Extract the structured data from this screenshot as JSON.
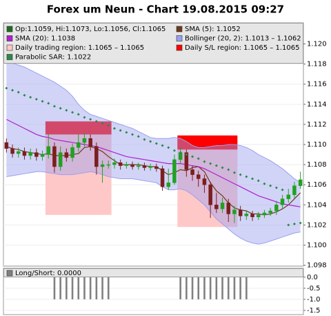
{
  "chart_data": [
    {
      "type": "candlestick",
      "title": "Forex um Neun - Chart 19.08.2015 09:27",
      "ohlc_name": "Op:1.1059, Hi:1.1073, Lo:1.1056, Cl:1.1065",
      "ohlc_color": "#1e6b1e",
      "up_color": "#22a022",
      "down_color": "#7a1f1f",
      "open": [
        1.1102,
        1.1096,
        1.1091,
        1.1093,
        1.1089,
        1.1092,
        1.1088,
        1.109,
        1.1098,
        1.1078,
        1.1092,
        1.1087,
        1.1097,
        1.1102,
        1.1106,
        1.1098,
        1.1078,
        1.108,
        1.108,
        1.1082,
        1.1079,
        1.108,
        1.1078,
        1.1079,
        1.1077,
        1.1078,
        1.1076,
        1.1058,
        1.1062,
        1.1085,
        1.1092,
        1.1075,
        1.107,
        1.1066,
        1.106,
        1.104,
        1.1036,
        1.1042,
        1.1031,
        1.1035,
        1.1029,
        1.1031,
        1.1028,
        1.103,
        1.1032,
        1.1034,
        1.104,
        1.1046,
        1.105,
        1.1059
      ],
      "high": [
        1.1106,
        1.11,
        1.1097,
        1.1097,
        1.1096,
        1.1096,
        1.1094,
        1.111,
        1.1102,
        1.1098,
        1.1096,
        1.1101,
        1.111,
        1.1112,
        1.111,
        1.1102,
        1.1084,
        1.1084,
        1.1086,
        1.1085,
        1.1083,
        1.1083,
        1.1082,
        1.1082,
        1.1081,
        1.1081,
        1.1079,
        1.1076,
        1.109,
        1.1097,
        1.1095,
        1.1079,
        1.1074,
        1.107,
        1.1063,
        1.1052,
        1.1047,
        1.1046,
        1.1039,
        1.1039,
        1.1034,
        1.1034,
        1.1033,
        1.1035,
        1.1037,
        1.1044,
        1.105,
        1.1056,
        1.1063,
        1.1073
      ],
      "low": [
        1.1092,
        1.1087,
        1.1087,
        1.1085,
        1.1085,
        1.1084,
        1.1084,
        1.1086,
        1.1072,
        1.1074,
        1.1083,
        1.1083,
        1.1093,
        1.1098,
        1.1094,
        1.107,
        1.1062,
        1.1076,
        1.1076,
        1.1075,
        1.1076,
        1.1075,
        1.1075,
        1.1074,
        1.1074,
        1.1073,
        1.1054,
        1.1055,
        1.106,
        1.1081,
        1.1068,
        1.1064,
        1.1058,
        1.1052,
        1.1027,
        1.1032,
        1.1032,
        1.1023,
        1.1022,
        1.1024,
        1.1025,
        1.1024,
        1.1025,
        1.1027,
        1.1029,
        1.103,
        1.1036,
        1.1042,
        1.1046,
        1.1056
      ],
      "close": [
        1.1096,
        1.1091,
        1.1093,
        1.1089,
        1.1092,
        1.1088,
        1.109,
        1.1098,
        1.1078,
        1.1092,
        1.1087,
        1.1097,
        1.1102,
        1.1106,
        1.1098,
        1.1078,
        1.108,
        1.108,
        1.1082,
        1.1079,
        1.108,
        1.1078,
        1.1079,
        1.1077,
        1.1078,
        1.1076,
        1.1058,
        1.1062,
        1.1085,
        1.1092,
        1.1075,
        1.107,
        1.1066,
        1.106,
        1.104,
        1.1036,
        1.1042,
        1.1031,
        1.1035,
        1.1029,
        1.1031,
        1.1028,
        1.103,
        1.1032,
        1.1034,
        1.104,
        1.1046,
        1.105,
        1.1059,
        1.1065
      ],
      "series": [
        {
          "name": "SMA (5): 1.1052",
          "color": "#6b3a1a",
          "style": "line",
          "values": [
            1.1098,
            1.1096,
            1.1095,
            1.1093,
            1.1092,
            1.1091,
            1.109,
            1.1091,
            1.1089,
            1.1089,
            1.1089,
            1.109,
            1.1091,
            1.1097,
            1.1098,
            1.1096,
            1.1093,
            1.1088,
            1.1084,
            1.108,
            1.108,
            1.108,
            1.108,
            1.1079,
            1.1078,
            1.1078,
            1.1074,
            1.107,
            1.1072,
            1.1075,
            1.1074,
            1.1077,
            1.1078,
            1.1073,
            1.1062,
            1.1054,
            1.1049,
            1.1042,
            1.1037,
            1.1035,
            1.1034,
            1.1031,
            1.1031,
            1.103,
            1.1031,
            1.1033,
            1.1036,
            1.104,
            1.1046,
            1.1052
          ]
        },
        {
          "name": "SMA (20): 1.1038",
          "color": "#b01ed0",
          "style": "line",
          "values": [
            1.1125,
            1.1122,
            1.1119,
            1.1116,
            1.1113,
            1.111,
            1.1108,
            1.1107,
            1.1105,
            1.1104,
            1.1103,
            1.1102,
            1.1101,
            1.11,
            1.1099,
            1.1098,
            1.1096,
            1.1094,
            1.1092,
            1.109,
            1.1088,
            1.1087,
            1.1086,
            1.1085,
            1.1084,
            1.1083,
            1.1082,
            1.1081,
            1.1081,
            1.1081,
            1.108,
            1.1079,
            1.1078,
            1.1076,
            1.1073,
            1.107,
            1.1067,
            1.1064,
            1.1061,
            1.1058,
            1.1055,
            1.1052,
            1.1049,
            1.1047,
            1.1045,
            1.1043,
            1.1041,
            1.104,
            1.1039,
            1.1038
          ]
        },
        {
          "name": "Bollinger (20, 2): 1.1013 – 1.1062",
          "color": "#9aa0ee",
          "style": "band",
          "upper": [
            1.1182,
            1.1181,
            1.1179,
            1.1177,
            1.1174,
            1.1171,
            1.1168,
            1.1165,
            1.1162,
            1.1158,
            1.1154,
            1.1148,
            1.114,
            1.1134,
            1.113,
            1.1128,
            1.1126,
            1.1124,
            1.1122,
            1.112,
            1.1118,
            1.1116,
            1.1113,
            1.111,
            1.1107,
            1.1106,
            1.1106,
            1.1106,
            1.1107,
            1.1106,
            1.1103,
            1.1099,
            1.1097,
            1.1097,
            1.1098,
            1.1099,
            1.1099,
            1.11,
            1.11,
            1.1099,
            1.1097,
            1.1094,
            1.109,
            1.1087,
            1.1084,
            1.108,
            1.1076,
            1.1071,
            1.1066,
            1.1062
          ],
          "lower": [
            1.1068,
            1.1069,
            1.107,
            1.1071,
            1.1072,
            1.1073,
            1.1073,
            1.1072,
            1.1071,
            1.107,
            1.107,
            1.107,
            1.1071,
            1.1072,
            1.1073,
            1.1072,
            1.107,
            1.1068,
            1.1067,
            1.1066,
            1.1066,
            1.1066,
            1.1065,
            1.1064,
            1.1063,
            1.1062,
            1.1058,
            1.1055,
            1.1055,
            1.1056,
            1.1054,
            1.105,
            1.1045,
            1.104,
            1.1033,
            1.1026,
            1.1021,
            1.1016,
            1.1011,
            1.1007,
            1.1004,
            1.1002,
            1.1001,
            1.1002,
            1.1004,
            1.1006,
            1.1008,
            1.101,
            1.1012,
            1.1013
          ]
        },
        {
          "name": "Parabolic SAR: 1.1022",
          "color": "#2a8a4a",
          "style": "dots",
          "values": [
            1.1156,
            1.1154,
            1.1152,
            1.1149,
            1.1147,
            1.1145,
            1.1143,
            1.1141,
            1.1138,
            1.1136,
            1.1134,
            1.1132,
            1.113,
            1.1127,
            1.1125,
            1.1123,
            1.1121,
            1.1119,
            1.1116,
            1.1114,
            1.1112,
            1.111,
            1.1108,
            1.1105,
            1.1103,
            1.1101,
            1.1099,
            1.1097,
            1.1094,
            1.1092,
            1.109,
            1.1088,
            1.1086,
            1.1083,
            1.1081,
            1.1079,
            1.1077,
            1.1075,
            1.1072,
            1.107,
            1.1068,
            1.1066,
            1.1064,
            1.1061,
            1.1059,
            1.1057,
            1.1055,
            1.102,
            1.1021,
            1.1022
          ]
        }
      ],
      "regions": [
        {
          "name": "Daily trading region: 1.1065 – 1.1065",
          "color": "#ffc8c8",
          "blocks": [
            {
              "from": 7,
              "to": 18,
              "low": 1.103,
              "high": 1.1123
            },
            {
              "from": 29,
              "to": 39,
              "low": 1.1018,
              "high": 1.1109
            }
          ]
        },
        {
          "name": "Daily S/L region: 1.1065 – 1.1065",
          "color": "#ff0000",
          "blocks": [
            {
              "from": 7,
              "to": 18,
              "low": 1.111,
              "high": 1.1123
            },
            {
              "from": 29,
              "to": 39,
              "low": 1.1095,
              "high": 1.1109
            }
          ]
        }
      ],
      "ylim": [
        1.0979,
        1.1221
      ],
      "yticks": [
        1.098,
        {
          "value": 1.1,
          "label": "1.100"
        },
        1.102,
        1.104,
        1.106,
        1.108,
        {
          "value": 1.11,
          "label": "1.110"
        },
        1.112,
        1.114,
        1.116,
        1.118,
        {
          "value": 1.12,
          "label": "1.120"
        }
      ],
      "grid": true
    },
    {
      "type": "bar",
      "series": [
        {
          "name": "Long/Short: 0.0000",
          "color": "#808080",
          "values": [
            0,
            0,
            0,
            0,
            0,
            0,
            0,
            0,
            -1,
            -1,
            -1,
            -1,
            -1,
            -1,
            -1,
            -1,
            -1,
            -1,
            0,
            0,
            0,
            0,
            0,
            0,
            0,
            0,
            0,
            0,
            0,
            -1,
            -1,
            -1,
            -1,
            -1,
            -1,
            -1,
            -1,
            -1,
            -1,
            -1,
            -1,
            0,
            0,
            0,
            0,
            0,
            0,
            0,
            0,
            0
          ]
        }
      ],
      "ylim": [
        -1.69,
        0.4
      ],
      "yticks": [
        {
          "value": 0,
          "label": "0.0"
        },
        -0.5,
        {
          "value": -1,
          "label": "-1.0"
        },
        -1.5
      ],
      "grid": true
    }
  ]
}
